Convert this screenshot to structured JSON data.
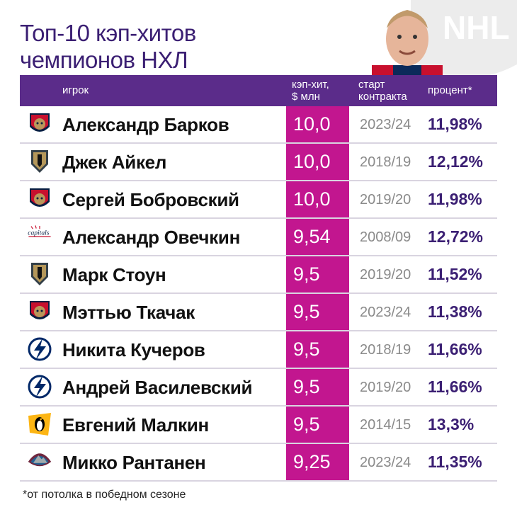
{
  "title": {
    "line1": "Топ-10 кэп-хитов",
    "line2": "чемпионов НХЛ"
  },
  "header": {
    "player": "игрок",
    "cap": "кэп-хит,\n$ млн",
    "start": "старт\nконтракта",
    "pct": "процент*"
  },
  "rows": [
    {
      "logo": "florida-panthers-logo",
      "name": "Александр Барков",
      "cap": "10,0",
      "start": "2023/24",
      "pct": "11,98%"
    },
    {
      "logo": "vegas-golden-knights-logo",
      "name": "Джек Айкел",
      "cap": "10,0",
      "start": "2018/19",
      "pct": "12,12%"
    },
    {
      "logo": "florida-panthers-logo",
      "name": "Сергей Бобровский",
      "cap": "10,0",
      "start": "2019/20",
      "pct": "11,98%"
    },
    {
      "logo": "washington-capitals-logo",
      "name": "Александр Овечкин",
      "cap": "9,54",
      "start": "2008/09",
      "pct": "12,72%"
    },
    {
      "logo": "vegas-golden-knights-logo",
      "name": "Марк Стоун",
      "cap": "9,5",
      "start": "2019/20",
      "pct": "11,52%"
    },
    {
      "logo": "florida-panthers-logo",
      "name": "Мэттью Ткачак",
      "cap": "9,5",
      "start": "2023/24",
      "pct": "11,38%"
    },
    {
      "logo": "tampa-bay-lightning-logo",
      "name": "Никита Кучеров",
      "cap": "9,5",
      "start": "2018/19",
      "pct": "11,66%"
    },
    {
      "logo": "tampa-bay-lightning-logo",
      "name": "Андрей Василевский",
      "cap": "9,5",
      "start": "2019/20",
      "pct": "11,66%"
    },
    {
      "logo": "pittsburgh-penguins-logo",
      "name": "Евгений Малкин",
      "cap": "9,5",
      "start": "2014/15",
      "pct": "13,3%"
    },
    {
      "logo": "colorado-avalanche-logo",
      "name": "Микко Рантанен",
      "cap": "9,25",
      "start": "2023/24",
      "pct": "11,35%"
    }
  ],
  "footnote": "*от потолка в победном сезоне",
  "colors": {
    "purple": "#5b2c8a",
    "magenta": "#c2168f",
    "title": "#3b1f73"
  }
}
